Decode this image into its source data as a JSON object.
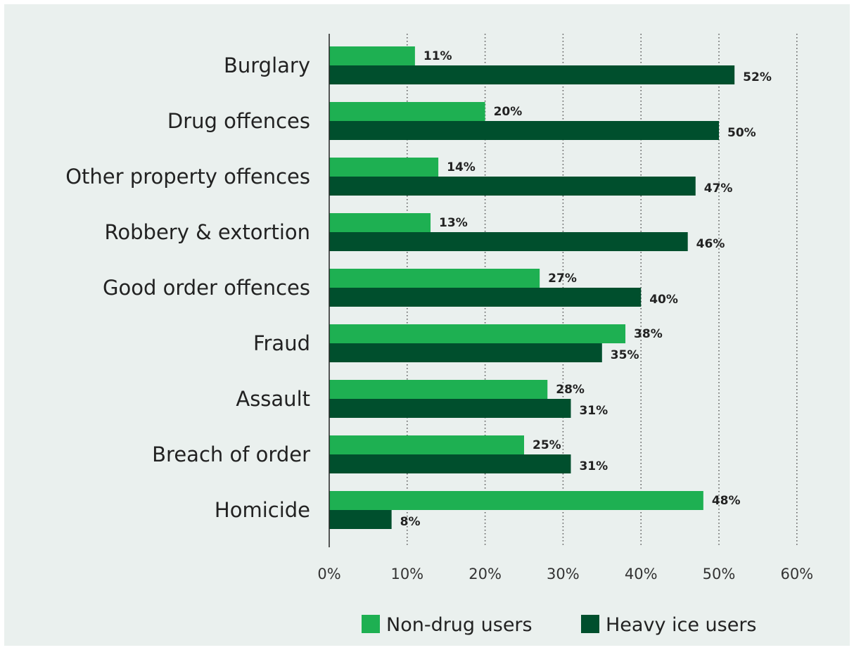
{
  "chart_data": {
    "type": "bar",
    "orientation": "horizontal",
    "categories": [
      "Burglary",
      "Drug offences",
      "Other property offences",
      "Robbery & extortion",
      "Good order offences",
      "Fraud",
      "Assault",
      "Breach of order",
      "Homicide"
    ],
    "series": [
      {
        "name": "Non-drug users",
        "values": [
          11,
          20,
          14,
          13,
          27,
          38,
          28,
          25,
          48
        ],
        "color": "#1eb052"
      },
      {
        "name": "Heavy ice users",
        "values": [
          52,
          50,
          47,
          46,
          40,
          35,
          31,
          31,
          8
        ],
        "color": "#004f2d"
      }
    ],
    "value_labels": [
      [
        "11%",
        "20%",
        "14%",
        "13%",
        "27%",
        "38%",
        "28%",
        "25%",
        "48%"
      ],
      [
        "52%",
        "50%",
        "47%",
        "46%",
        "40%",
        "35%",
        "31%",
        "31%",
        "8%"
      ]
    ],
    "x_ticks": [
      "0%",
      "10%",
      "20%",
      "30%",
      "40%",
      "50%",
      "60%"
    ],
    "xlim": [
      0,
      60
    ],
    "grid": "vertical dotted",
    "legend_position": "bottom",
    "title": "",
    "xlabel": "",
    "ylabel": ""
  }
}
